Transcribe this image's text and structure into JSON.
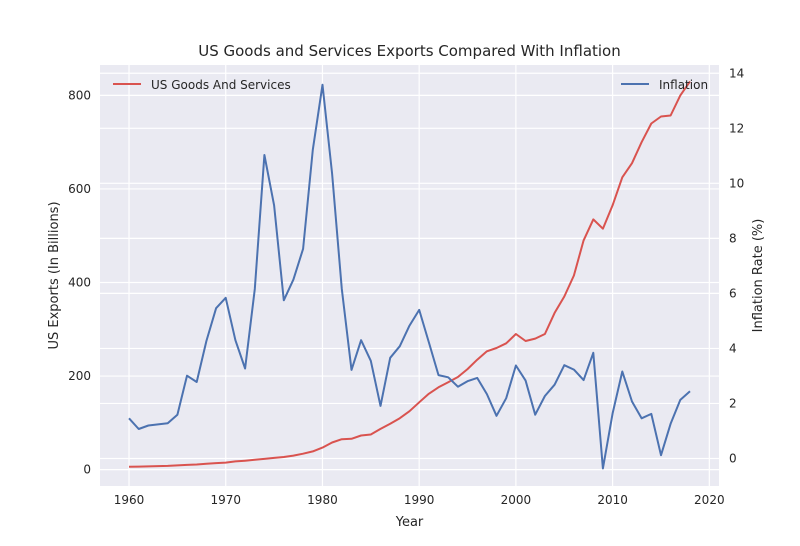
{
  "chart_data": {
    "type": "line",
    "title": "US Goods and Services Exports Compared With Inflation",
    "xlabel": "Year",
    "ylabel": "US Exports (In Billions)",
    "y2label": "Inflation Rate (%)",
    "xlim": [
      1957.0,
      2021.0
    ],
    "ylim": [
      -35,
      865
    ],
    "y2lim": [
      -1.0,
      14.3
    ],
    "xticks": [
      1960,
      1970,
      1980,
      1990,
      2000,
      2010,
      2020
    ],
    "yticks": [
      0,
      200,
      400,
      600,
      800
    ],
    "y2ticks": [
      0,
      2,
      4,
      6,
      8,
      10,
      12,
      14
    ],
    "grid": true,
    "x": [
      1960,
      1961,
      1962,
      1963,
      1964,
      1965,
      1966,
      1967,
      1968,
      1969,
      1970,
      1971,
      1972,
      1973,
      1974,
      1975,
      1976,
      1977,
      1978,
      1979,
      1980,
      1981,
      1982,
      1983,
      1984,
      1985,
      1986,
      1987,
      1988,
      1989,
      1990,
      1991,
      1992,
      1993,
      1994,
      1995,
      1996,
      1997,
      1998,
      1999,
      2000,
      2001,
      2002,
      2003,
      2004,
      2005,
      2006,
      2007,
      2008,
      2009,
      2010,
      2011,
      2012,
      2013,
      2014,
      2015,
      2016,
      2017,
      2018
    ],
    "series": [
      {
        "name": "US Goods And Services",
        "axis": "left",
        "color": "#d9534f",
        "values": [
          6,
          6.5,
          7,
          7.5,
          8,
          9,
          10,
          11,
          12.5,
          14,
          15,
          17.5,
          19,
          21,
          23,
          25,
          27,
          30,
          34,
          39,
          47,
          58,
          65,
          66,
          73,
          75,
          87,
          98,
          110,
          125,
          144,
          162,
          176,
          187,
          198,
          215,
          235,
          253,
          260,
          270,
          290,
          275,
          280,
          290,
          335,
          370,
          415,
          490,
          535,
          515,
          565,
          625,
          655,
          700,
          740,
          755,
          757,
          800,
          830
        ]
      },
      {
        "name": "Inflation",
        "axis": "right",
        "color": "#4c72b0",
        "values": [
          1.46,
          1.07,
          1.2,
          1.24,
          1.28,
          1.59,
          3.01,
          2.78,
          4.27,
          5.46,
          5.84,
          4.3,
          3.27,
          6.16,
          11.03,
          9.2,
          5.75,
          6.5,
          7.62,
          11.22,
          13.58,
          10.35,
          6.16,
          3.22,
          4.3,
          3.55,
          1.91,
          3.66,
          4.08,
          4.83,
          5.4,
          4.23,
          3.03,
          2.95,
          2.61,
          2.81,
          2.93,
          2.34,
          1.55,
          2.19,
          3.38,
          2.83,
          1.59,
          2.27,
          2.68,
          3.39,
          3.23,
          2.85,
          3.84,
          -0.36,
          1.64,
          3.16,
          2.07,
          1.46,
          1.62,
          0.12,
          1.26,
          2.13,
          2.44
        ]
      }
    ],
    "legends": [
      {
        "text": "US Goods And Services",
        "position": "upper-left",
        "color": "#d9534f"
      },
      {
        "text": "Inflation",
        "position": "upper-right",
        "color": "#4c72b0"
      }
    ],
    "colors": {
      "plot_bg": "#eaeaf2",
      "grid": "#ffffff"
    }
  }
}
